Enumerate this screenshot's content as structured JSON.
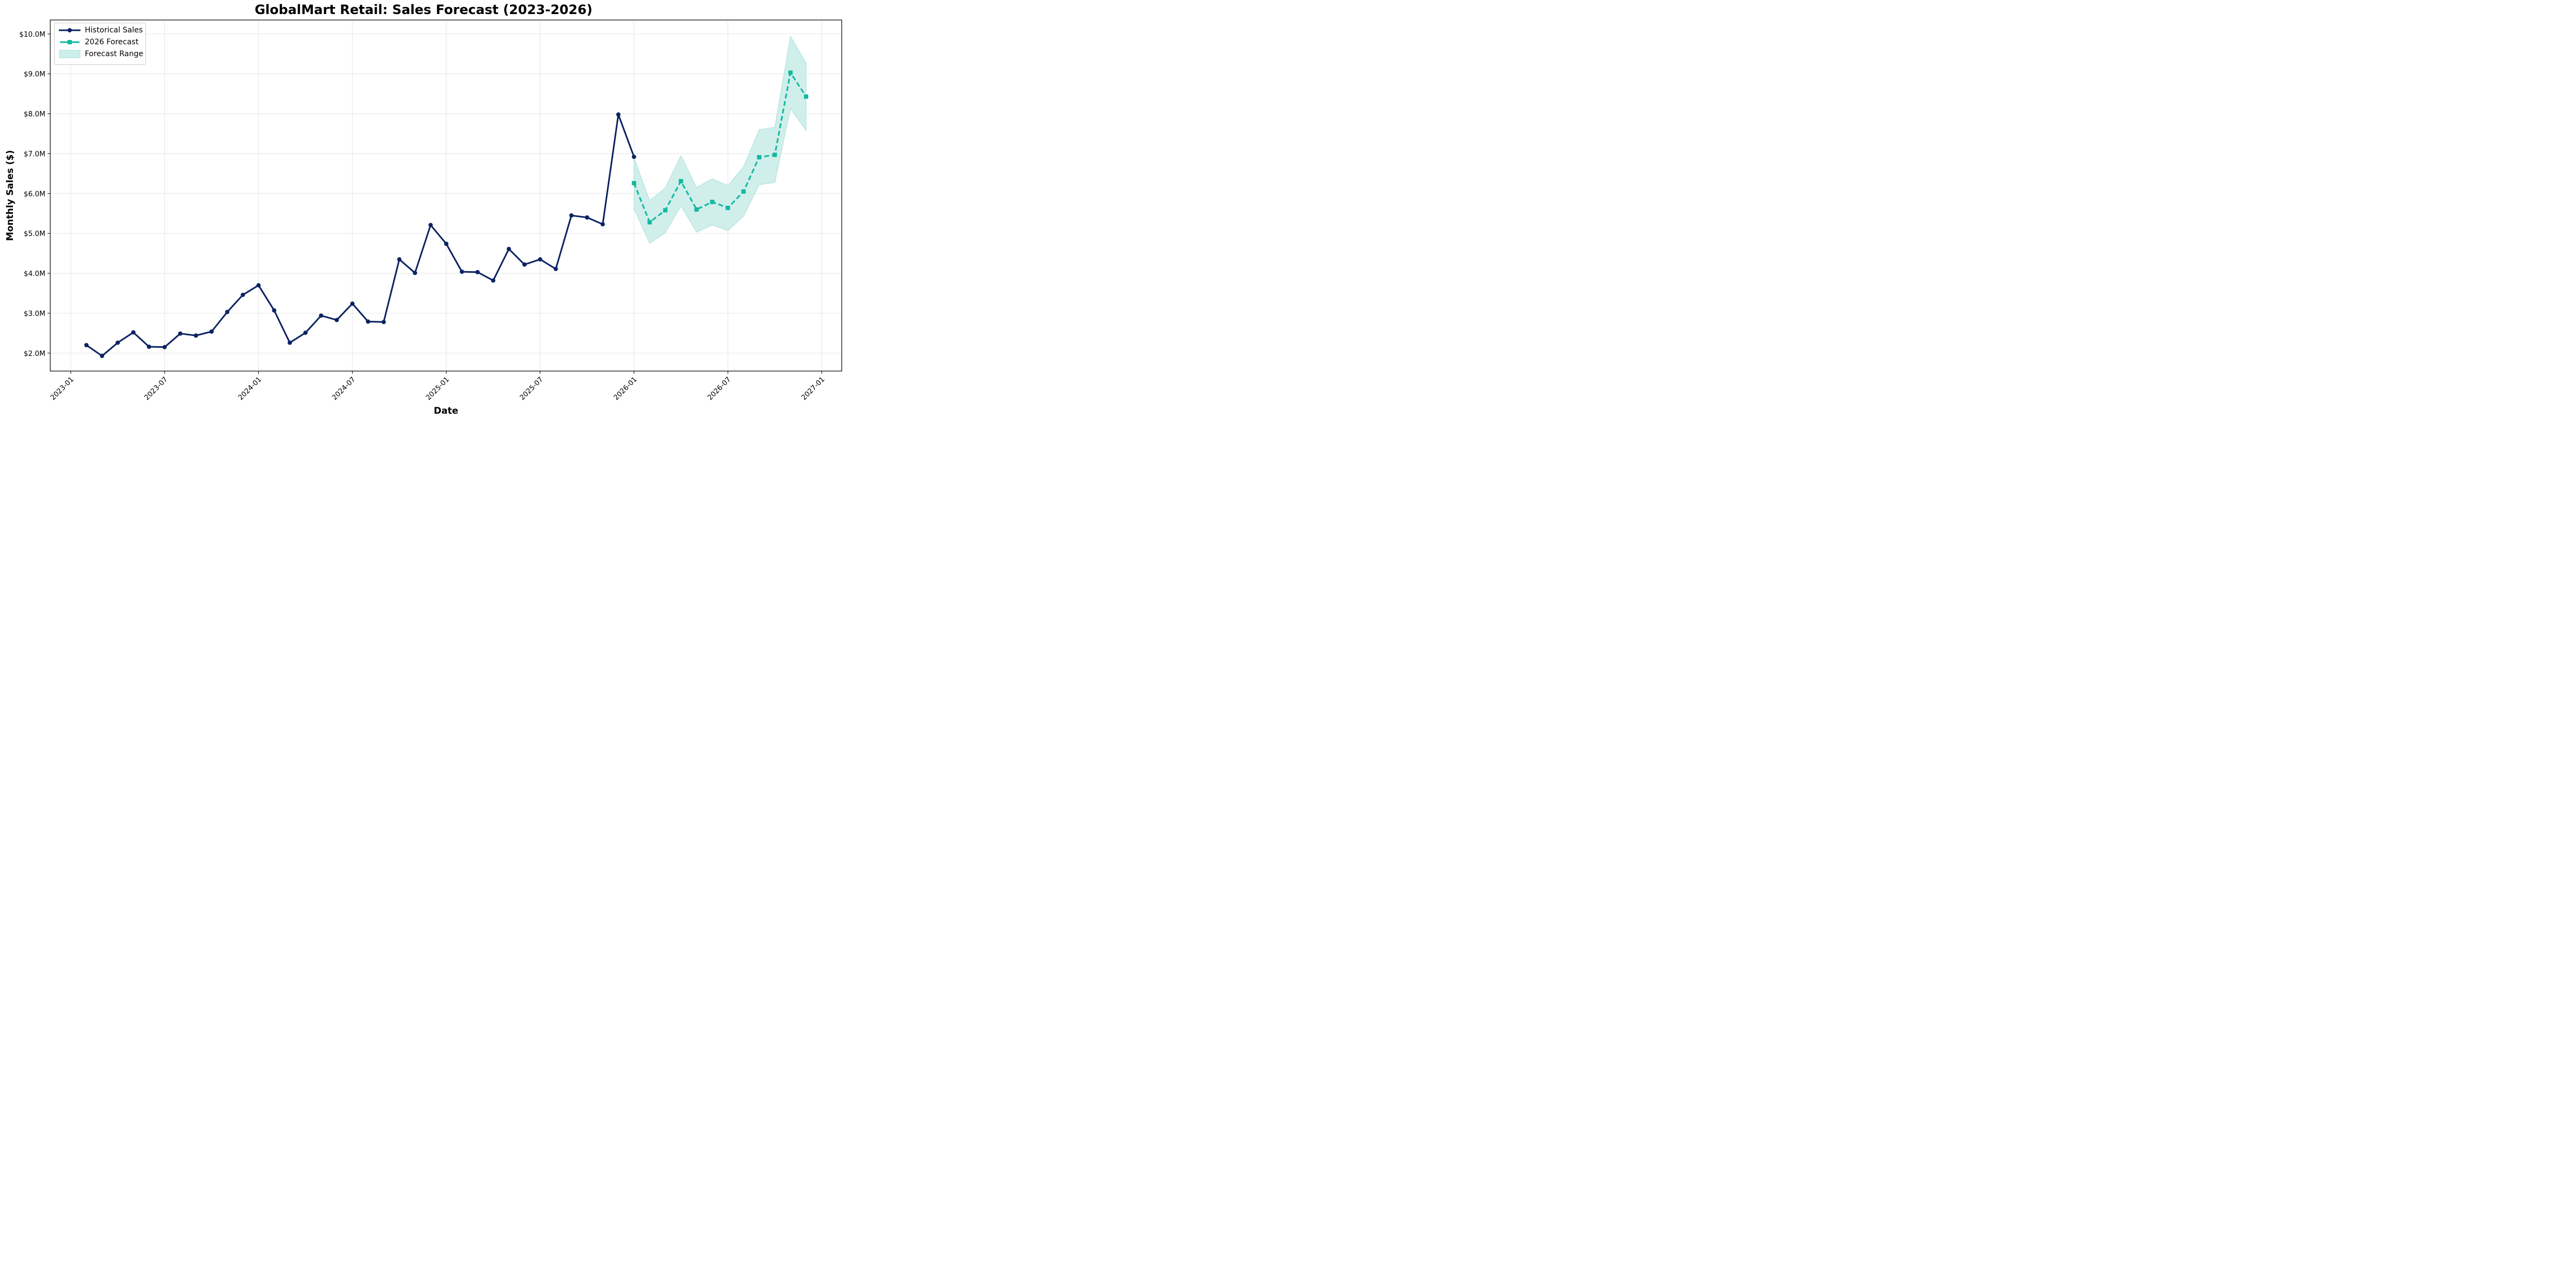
{
  "chart_data": {
    "type": "line",
    "title": "GlobalMart Retail: Sales Forecast (2023-2026)",
    "xlabel": "Date",
    "ylabel": "Monthly Sales ($)",
    "ylim": [
      1.55,
      10.35
    ],
    "yunit": "$M",
    "y_ticks": [
      "$2.0M",
      "$3.0M",
      "$4.0M",
      "$5.0M",
      "$6.0M",
      "$7.0M",
      "$8.0M",
      "$9.0M",
      "$10.0M"
    ],
    "y_tick_values": [
      2,
      3,
      4,
      5,
      6,
      7,
      8,
      9,
      10
    ],
    "x_ticks": [
      "2023-01",
      "2023-07",
      "2024-01",
      "2024-07",
      "2025-01",
      "2025-07",
      "2026-01",
      "2026-07",
      "2027-01"
    ],
    "grid": true,
    "legend_position": "upper left",
    "legend": [
      "Historical Sales",
      "2026 Forecast",
      "Forecast Range"
    ],
    "series": [
      {
        "name": "Historical Sales",
        "style": "solid line, circle markers",
        "color": "#0d2463",
        "x": [
          "2023-02",
          "2023-03",
          "2023-04",
          "2023-05",
          "2023-06",
          "2023-07",
          "2023-08",
          "2023-09",
          "2023-10",
          "2023-11",
          "2023-12",
          "2024-01",
          "2024-02",
          "2024-03",
          "2024-04",
          "2024-05",
          "2024-06",
          "2024-07",
          "2024-08",
          "2024-09",
          "2024-10",
          "2024-11",
          "2024-12",
          "2025-01",
          "2025-02",
          "2025-03",
          "2025-04",
          "2025-05",
          "2025-06",
          "2025-07",
          "2025-08",
          "2025-09",
          "2025-10",
          "2025-11",
          "2025-12",
          "2026-01"
        ],
        "values": [
          2.2,
          1.93,
          2.26,
          2.52,
          2.16,
          2.15,
          2.49,
          2.44,
          2.54,
          3.03,
          3.46,
          3.7,
          3.07,
          2.26,
          2.51,
          2.94,
          2.83,
          3.24,
          2.79,
          2.78,
          4.35,
          4.01,
          5.21,
          4.74,
          4.04,
          4.03,
          3.82,
          4.61,
          4.22,
          4.35,
          4.11,
          5.45,
          5.4,
          5.23,
          7.98,
          6.92
        ]
      },
      {
        "name": "2026 Forecast",
        "style": "dashed line, square markers",
        "color": "#14b8a0",
        "x": [
          "2026-01",
          "2026-02",
          "2026-03",
          "2026-04",
          "2026-05",
          "2026-06",
          "2026-07",
          "2026-08",
          "2026-09",
          "2026-10",
          "2026-11",
          "2026-12"
        ],
        "values": [
          6.26,
          5.28,
          5.58,
          6.31,
          5.6,
          5.79,
          5.64,
          6.05,
          6.91,
          6.97,
          9.03,
          8.43
        ]
      },
      {
        "name": "Forecast Range",
        "style": "filled band",
        "color": "#14b8a0",
        "x": [
          "2026-01",
          "2026-02",
          "2026-03",
          "2026-04",
          "2026-05",
          "2026-06",
          "2026-07",
          "2026-08",
          "2026-09",
          "2026-10",
          "2026-11",
          "2026-12"
        ],
        "upper": [
          6.9,
          5.82,
          6.14,
          6.95,
          6.15,
          6.37,
          6.2,
          6.67,
          7.6,
          7.66,
          9.94,
          9.27
        ],
        "lower": [
          5.62,
          4.75,
          5.02,
          5.69,
          5.03,
          5.21,
          5.07,
          5.43,
          6.22,
          6.28,
          8.13,
          7.58
        ]
      }
    ]
  },
  "colors": {
    "historical": "#0d2463",
    "forecast": "#14b8a0",
    "band_fill": "#cdeeea",
    "grid": "#e6e6e6"
  }
}
